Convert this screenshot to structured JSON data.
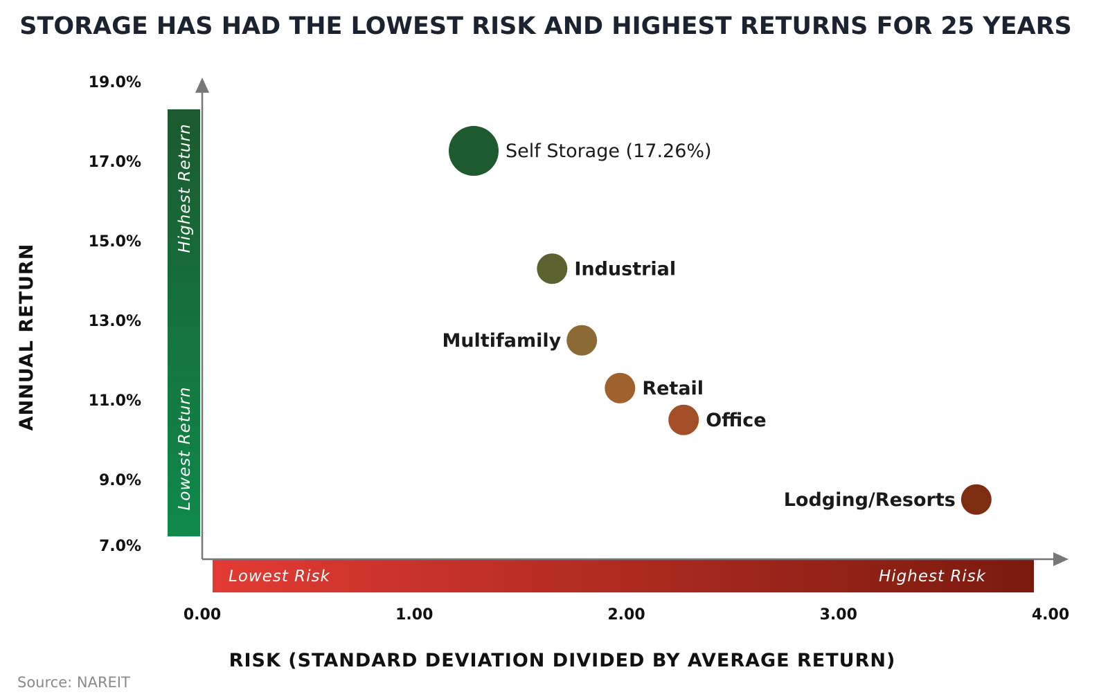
{
  "chart_data": {
    "type": "scatter",
    "title": "STORAGE HAS HAD THE LOWEST RISK AND HIGHEST RETURNS FOR 25 YEARS",
    "xlabel": "RISK (STANDARD DEVIATION DIVIDED BY AVERAGE RETURN)",
    "ylabel": "ANNUAL RETURN",
    "xlim": [
      0,
      4
    ],
    "ylim": [
      7,
      19
    ],
    "x_ticks": [
      "0.00",
      "1.00",
      "2.00",
      "3.00",
      "4.00"
    ],
    "x_tick_values": [
      0,
      1,
      2,
      3,
      4
    ],
    "y_ticks": [
      "19.0%",
      "17.0%",
      "15.0%",
      "13.0%",
      "11.0%",
      "9.0%",
      "7.0%"
    ],
    "y_tick_values": [
      19,
      17,
      15,
      13,
      11,
      9,
      7
    ],
    "grid": false,
    "points": [
      {
        "label": "Self Storage (17.26%)",
        "x": 1.28,
        "y": 17.26,
        "color": "#1d5a2d",
        "emphasis": true
      },
      {
        "label": "Industrial",
        "x": 1.65,
        "y": 14.3,
        "color": "#5c6130"
      },
      {
        "label": "Multifamily",
        "x": 1.79,
        "y": 12.5,
        "color": "#8b6a35",
        "label_side": "left"
      },
      {
        "label": "Retail",
        "x": 1.97,
        "y": 11.3,
        "color": "#9f612e"
      },
      {
        "label": "Office",
        "x": 2.27,
        "y": 10.5,
        "color": "#a24f27"
      },
      {
        "label": "Lodging/Resorts",
        "x": 3.65,
        "y": 8.5,
        "color": "#7e2d12",
        "label_side": "left"
      }
    ],
    "return_band": {
      "top_label": "Highest Return",
      "bottom_label": "Lowest Return",
      "color_top": "#1b5a2d",
      "color_bottom": "#0f8a4a"
    },
    "risk_band": {
      "left_label": "Lowest Risk",
      "right_label": "Highest Risk",
      "color_left": "#e23b33",
      "color_right": "#7a1a0e"
    }
  },
  "source": "Source: NAREIT"
}
